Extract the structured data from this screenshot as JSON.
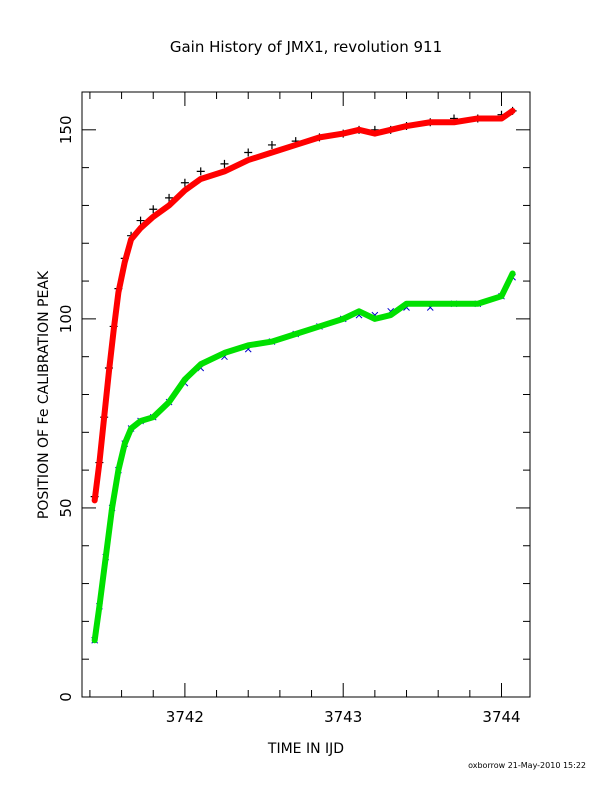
{
  "chart_data": {
    "type": "scatter",
    "title": "Gain History of JMX1, revolution 911",
    "xlabel": "TIME IN IJD",
    "ylabel": "POSITION OF Fe CALIBRATION PEAK",
    "footer": "oxborrow 21-May-2010 15:22",
    "xlim": [
      3741.35,
      3744.18
    ],
    "ylim": [
      0,
      160
    ],
    "x_ticks": [
      3742,
      3743,
      3744
    ],
    "x_tick_labels": [
      "3742",
      "3743",
      "3744"
    ],
    "y_ticks": [
      0,
      50,
      100,
      150
    ],
    "y_tick_labels": [
      "0",
      "50",
      "100",
      "150"
    ],
    "grid": false,
    "series": [
      {
        "marker": "plus",
        "color": "#000000",
        "x": [
          3741.43,
          3741.46,
          3741.49,
          3741.52,
          3741.55,
          3741.58,
          3741.62,
          3741.66,
          3741.72,
          3741.8,
          3741.9,
          3742.0,
          3742.1,
          3742.25,
          3742.4,
          3742.55,
          3742.7,
          3742.85,
          3743.0,
          3743.1,
          3743.2,
          3743.3,
          3743.4,
          3743.55,
          3743.7,
          3743.85,
          3744.0,
          3744.07
        ],
        "y": [
          53,
          62,
          74,
          87,
          98,
          108,
          116,
          122,
          126,
          129,
          132,
          136,
          139,
          141,
          144,
          146,
          147,
          148,
          149,
          150,
          150,
          150,
          151,
          152,
          153,
          153,
          154,
          155
        ]
      },
      {
        "marker": "line",
        "color": "#ff0000",
        "x": [
          3741.43,
          3741.46,
          3741.49,
          3741.52,
          3741.55,
          3741.58,
          3741.62,
          3741.66,
          3741.72,
          3741.8,
          3741.9,
          3742.0,
          3742.1,
          3742.25,
          3742.4,
          3742.55,
          3742.7,
          3742.85,
          3743.0,
          3743.1,
          3743.2,
          3743.3,
          3743.4,
          3743.55,
          3743.7,
          3743.85,
          3744.0,
          3744.07
        ],
        "y": [
          52,
          62,
          74,
          86,
          97,
          107,
          115,
          121,
          124,
          127,
          130,
          134,
          137,
          139,
          142,
          144,
          146,
          148,
          149,
          150,
          149,
          150,
          151,
          152,
          152,
          153,
          153,
          155
        ]
      },
      {
        "marker": "cross",
        "color": "#0000cc",
        "x": [
          3741.43,
          3741.46,
          3741.5,
          3741.54,
          3741.58,
          3741.62,
          3741.66,
          3741.72,
          3741.8,
          3741.9,
          3742.0,
          3742.1,
          3742.25,
          3742.4,
          3742.55,
          3742.7,
          3742.85,
          3743.0,
          3743.1,
          3743.2,
          3743.3,
          3743.4,
          3743.55,
          3743.7,
          3743.85,
          3744.0,
          3744.07
        ],
        "y": [
          15,
          24,
          37,
          50,
          60,
          67,
          71,
          73,
          74,
          78,
          83,
          87,
          90,
          92,
          94,
          96,
          98,
          100,
          101,
          101,
          102,
          103,
          103,
          104,
          104,
          106,
          111
        ]
      },
      {
        "marker": "line",
        "color": "#00e000",
        "x": [
          3741.43,
          3741.46,
          3741.5,
          3741.54,
          3741.58,
          3741.62,
          3741.66,
          3741.72,
          3741.8,
          3741.9,
          3742.0,
          3742.1,
          3742.25,
          3742.4,
          3742.55,
          3742.7,
          3742.85,
          3743.0,
          3743.1,
          3743.2,
          3743.3,
          3743.4,
          3743.55,
          3743.7,
          3743.85,
          3744.0,
          3744.07
        ],
        "y": [
          15,
          24,
          37,
          50,
          60,
          67,
          71,
          73,
          74,
          78,
          84,
          88,
          91,
          93,
          94,
          96,
          98,
          100,
          102,
          100,
          101,
          104,
          104,
          104,
          104,
          106,
          112
        ]
      }
    ]
  }
}
